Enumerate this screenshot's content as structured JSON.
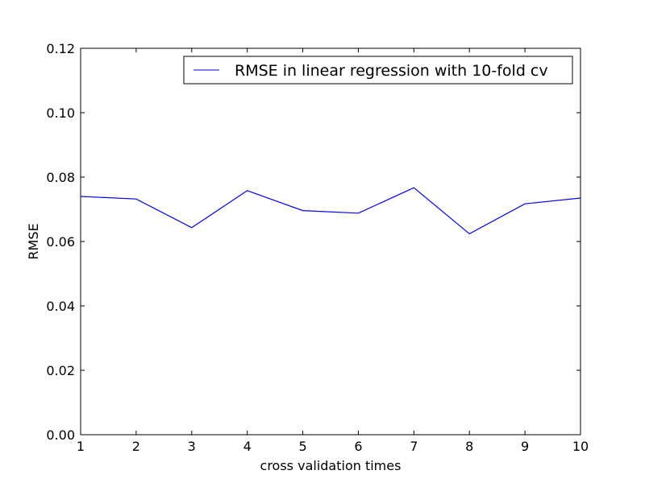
{
  "chart_data": {
    "type": "line",
    "title": "",
    "xlabel": "cross validation times",
    "ylabel": "RMSE",
    "xlim": [
      1,
      10
    ],
    "ylim": [
      0,
      0.12
    ],
    "xticks": [
      "1",
      "2",
      "3",
      "4",
      "5",
      "6",
      "7",
      "8",
      "9",
      "10"
    ],
    "yticks": [
      "0.00",
      "0.02",
      "0.04",
      "0.06",
      "0.08",
      "0.10",
      "0.12"
    ],
    "grid": false,
    "legend_position": "top-right",
    "series": [
      {
        "name": "RMSE in linear regression with 10-fold cv",
        "color": "#0000ff",
        "x": [
          1,
          2,
          3,
          4,
          5,
          6,
          7,
          8,
          9,
          10
        ],
        "y": [
          0.074,
          0.0732,
          0.0643,
          0.0758,
          0.0696,
          0.0688,
          0.0767,
          0.0624,
          0.0717,
          0.0735
        ]
      }
    ]
  }
}
